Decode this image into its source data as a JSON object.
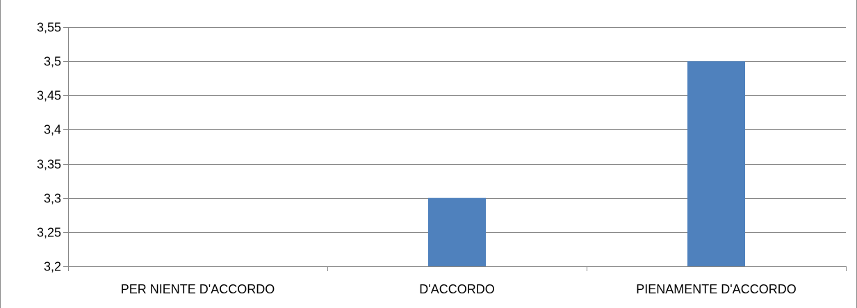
{
  "chart_data": {
    "type": "bar",
    "title": "",
    "xlabel": "",
    "ylabel": "",
    "categories": [
      "PER NIENTE D'ACCORDO",
      "D'ACCORDO",
      "PIENAMENTE D'ACCORDO"
    ],
    "values": [
      3.2,
      3.3,
      3.5
    ],
    "ylim": [
      3.2,
      3.55
    ],
    "y_ticks": [
      "3,2",
      "3,25",
      "3,3",
      "3,35",
      "3,4",
      "3,45",
      "3,5",
      "3,55"
    ],
    "y_tick_values": [
      3.2,
      3.25,
      3.3,
      3.35,
      3.4,
      3.45,
      3.5,
      3.55
    ],
    "grid": true,
    "legend": "none",
    "bar_color": "#4f81bd",
    "grid_color": "#868686"
  }
}
